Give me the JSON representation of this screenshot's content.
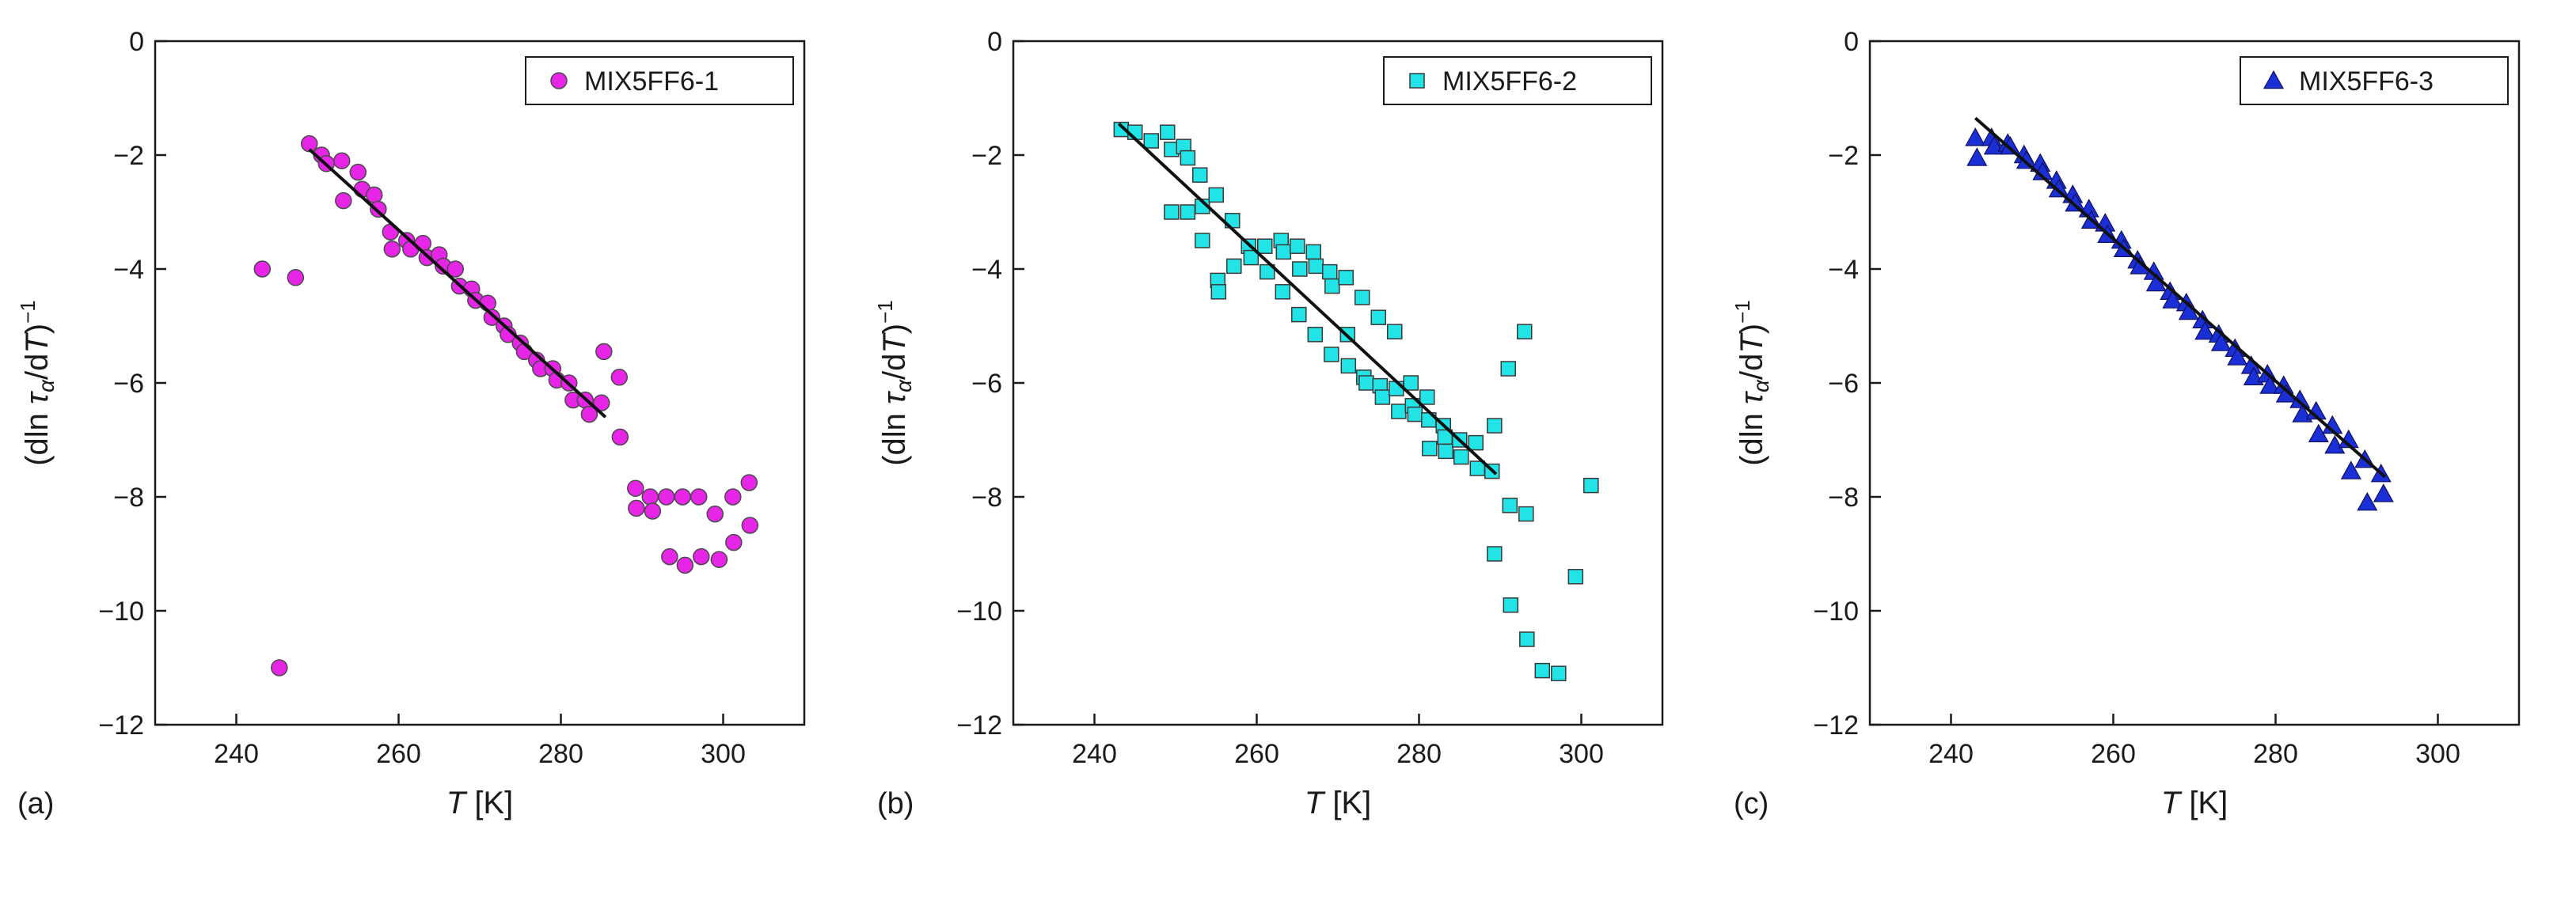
{
  "chart_data": [
    {
      "type": "scatter",
      "panel_label": "(a)",
      "xlabel_italic": "T",
      "xlabel_unit": " [K]",
      "ylabel": "(dln τα/dT)⁻¹",
      "xlim": [
        230,
        310
      ],
      "ylim": [
        -12,
        0
      ],
      "xticks": [
        240,
        260,
        280,
        300
      ],
      "yticks": [
        0,
        -2,
        -4,
        -6,
        -8,
        -10,
        -12
      ],
      "legend": "MIX5FF6-1",
      "legend_position": "top-right",
      "marker": "circle",
      "marker_color": "#e625e6",
      "fit_line": [
        [
          249,
          -1.9
        ],
        [
          285.5,
          -6.6
        ]
      ],
      "points": [
        [
          243.2,
          -4.0
        ],
        [
          245.3,
          -11.0
        ],
        [
          247.3,
          -4.15
        ],
        [
          249.0,
          -1.8
        ],
        [
          250.5,
          -2.0
        ],
        [
          251.1,
          -2.15
        ],
        [
          253.0,
          -2.1
        ],
        [
          253.2,
          -2.8
        ],
        [
          255.0,
          -2.3
        ],
        [
          255.5,
          -2.6
        ],
        [
          257.0,
          -2.7
        ],
        [
          257.5,
          -2.95
        ],
        [
          259.0,
          -3.35
        ],
        [
          259.2,
          -3.65
        ],
        [
          261.0,
          -3.5
        ],
        [
          261.5,
          -3.65
        ],
        [
          263.0,
          -3.55
        ],
        [
          263.5,
          -3.8
        ],
        [
          265.0,
          -3.75
        ],
        [
          265.5,
          -3.95
        ],
        [
          267.0,
          -4.0
        ],
        [
          267.5,
          -4.3
        ],
        [
          269.0,
          -4.35
        ],
        [
          269.5,
          -4.55
        ],
        [
          271.0,
          -4.6
        ],
        [
          271.5,
          -4.85
        ],
        [
          273.0,
          -5.0
        ],
        [
          273.5,
          -5.15
        ],
        [
          275.0,
          -5.3
        ],
        [
          275.5,
          -5.45
        ],
        [
          277.0,
          -5.6
        ],
        [
          277.5,
          -5.75
        ],
        [
          279.0,
          -5.75
        ],
        [
          279.5,
          -5.95
        ],
        [
          281.0,
          -6.0
        ],
        [
          281.5,
          -6.3
        ],
        [
          283.0,
          -6.3
        ],
        [
          283.5,
          -6.55
        ],
        [
          285.0,
          -6.35
        ],
        [
          285.3,
          -5.45
        ],
        [
          287.2,
          -5.9
        ],
        [
          287.3,
          -6.95
        ],
        [
          289.2,
          -7.85
        ],
        [
          289.3,
          -8.2
        ],
        [
          291.0,
          -8.0
        ],
        [
          291.3,
          -8.25
        ],
        [
          293.0,
          -8.0
        ],
        [
          293.4,
          -9.05
        ],
        [
          295.0,
          -8.0
        ],
        [
          295.3,
          -9.2
        ],
        [
          297.0,
          -8.0
        ],
        [
          297.3,
          -9.05
        ],
        [
          299.0,
          -8.3
        ],
        [
          299.5,
          -9.1
        ],
        [
          301.2,
          -8.0
        ],
        [
          301.3,
          -8.8
        ],
        [
          303.2,
          -7.75
        ],
        [
          303.3,
          -8.5
        ]
      ]
    },
    {
      "type": "scatter",
      "panel_label": "(b)",
      "xlabel_italic": "T",
      "xlabel_unit": " [K]",
      "ylabel": "(dln τα/dT)⁻¹",
      "xlim": [
        230,
        310
      ],
      "ylim": [
        -12,
        0
      ],
      "xticks": [
        240,
        260,
        280,
        300
      ],
      "yticks": [
        0,
        -2,
        -4,
        -6,
        -8,
        -10,
        -12
      ],
      "legend": "MIX5FF6-2",
      "legend_position": "top-right",
      "marker": "square",
      "marker_color": "#22e3e6",
      "fit_line": [
        [
          243,
          -1.45
        ],
        [
          289.5,
          -7.6
        ]
      ],
      "points": [
        [
          243.3,
          -1.55
        ],
        [
          245.0,
          -1.6
        ],
        [
          247.0,
          -1.75
        ],
        [
          249.0,
          -1.6
        ],
        [
          249.5,
          -1.9
        ],
        [
          251.0,
          -1.85
        ],
        [
          251.5,
          -2.05
        ],
        [
          253.0,
          -2.35
        ],
        [
          253.3,
          -2.9
        ],
        [
          249.5,
          -3.0
        ],
        [
          251.5,
          -3.0
        ],
        [
          253.3,
          -3.5
        ],
        [
          255.0,
          -2.7
        ],
        [
          255.2,
          -4.2
        ],
        [
          255.3,
          -4.4
        ],
        [
          257.0,
          -3.15
        ],
        [
          257.2,
          -3.95
        ],
        [
          259.0,
          -3.6
        ],
        [
          259.3,
          -3.8
        ],
        [
          261.0,
          -3.6
        ],
        [
          261.3,
          -4.05
        ],
        [
          263.0,
          -3.5
        ],
        [
          263.3,
          -3.7
        ],
        [
          265.0,
          -3.6
        ],
        [
          265.3,
          -4.0
        ],
        [
          267.0,
          -3.7
        ],
        [
          267.3,
          -3.95
        ],
        [
          269.0,
          -4.05
        ],
        [
          269.3,
          -4.3
        ],
        [
          271.0,
          -4.15
        ],
        [
          263.2,
          -4.4
        ],
        [
          265.2,
          -4.8
        ],
        [
          267.2,
          -5.15
        ],
        [
          269.2,
          -5.5
        ],
        [
          271.2,
          -5.15
        ],
        [
          271.3,
          -5.7
        ],
        [
          273.0,
          -4.5
        ],
        [
          273.2,
          -5.9
        ],
        [
          273.5,
          -6.0
        ],
        [
          275.0,
          -4.85
        ],
        [
          275.2,
          -6.05
        ],
        [
          275.5,
          -6.25
        ],
        [
          277.0,
          -5.1
        ],
        [
          277.2,
          -6.1
        ],
        [
          277.5,
          -6.5
        ],
        [
          279.0,
          -6.0
        ],
        [
          279.2,
          -6.4
        ],
        [
          279.5,
          -6.55
        ],
        [
          281.0,
          -6.25
        ],
        [
          281.2,
          -6.65
        ],
        [
          281.3,
          -7.15
        ],
        [
          283.0,
          -6.75
        ],
        [
          283.2,
          -6.95
        ],
        [
          283.3,
          -7.2
        ],
        [
          285.0,
          -7.0
        ],
        [
          285.2,
          -7.3
        ],
        [
          287.0,
          -7.05
        ],
        [
          287.2,
          -7.5
        ],
        [
          289.0,
          -7.55
        ],
        [
          289.3,
          -6.75
        ],
        [
          289.3,
          -9.0
        ],
        [
          291.0,
          -5.75
        ],
        [
          291.2,
          -8.15
        ],
        [
          291.3,
          -9.9
        ],
        [
          293.0,
          -5.1
        ],
        [
          293.2,
          -8.3
        ],
        [
          293.3,
          -10.5
        ],
        [
          295.2,
          -11.05
        ],
        [
          297.2,
          -11.1
        ],
        [
          299.3,
          -9.4
        ],
        [
          301.2,
          -7.8
        ]
      ]
    },
    {
      "type": "scatter",
      "panel_label": "(c)",
      "xlabel_italic": "T",
      "xlabel_unit": " [K]",
      "ylabel": "(dln τα/dT)⁻¹",
      "xlim": [
        230,
        310
      ],
      "ylim": [
        -12,
        0
      ],
      "xticks": [
        240,
        260,
        280,
        300
      ],
      "yticks": [
        0,
        -2,
        -4,
        -6,
        -8,
        -10,
        -12
      ],
      "legend": "MIX5FF6-3",
      "legend_position": "top-right",
      "marker": "triangle",
      "marker_color": "#1a2fd6",
      "fit_line": [
        [
          243,
          -1.35
        ],
        [
          293.5,
          -7.65
        ]
      ],
      "points": [
        [
          243.0,
          -1.7
        ],
        [
          243.2,
          -2.05
        ],
        [
          245.0,
          -1.7
        ],
        [
          245.3,
          -1.85
        ],
        [
          247.0,
          -1.8
        ],
        [
          247.3,
          -1.85
        ],
        [
          249.0,
          -2.0
        ],
        [
          249.3,
          -2.1
        ],
        [
          251.0,
          -2.15
        ],
        [
          251.3,
          -2.3
        ],
        [
          253.0,
          -2.45
        ],
        [
          253.3,
          -2.6
        ],
        [
          255.0,
          -2.7
        ],
        [
          255.3,
          -2.85
        ],
        [
          257.0,
          -2.95
        ],
        [
          257.3,
          -3.15
        ],
        [
          259.0,
          -3.2
        ],
        [
          259.3,
          -3.4
        ],
        [
          261.0,
          -3.5
        ],
        [
          261.3,
          -3.65
        ],
        [
          263.0,
          -3.85
        ],
        [
          263.3,
          -3.95
        ],
        [
          265.0,
          -4.05
        ],
        [
          265.3,
          -4.25
        ],
        [
          267.0,
          -4.4
        ],
        [
          267.3,
          -4.55
        ],
        [
          269.0,
          -4.6
        ],
        [
          269.3,
          -4.75
        ],
        [
          271.0,
          -4.9
        ],
        [
          271.3,
          -5.1
        ],
        [
          273.0,
          -5.15
        ],
        [
          273.3,
          -5.3
        ],
        [
          275.0,
          -5.4
        ],
        [
          275.3,
          -5.55
        ],
        [
          277.0,
          -5.7
        ],
        [
          277.3,
          -5.9
        ],
        [
          279.0,
          -5.85
        ],
        [
          279.3,
          -6.05
        ],
        [
          281.0,
          -6.05
        ],
        [
          281.3,
          -6.2
        ],
        [
          283.0,
          -6.3
        ],
        [
          283.3,
          -6.55
        ],
        [
          285.0,
          -6.5
        ],
        [
          285.3,
          -6.9
        ],
        [
          287.0,
          -6.75
        ],
        [
          287.3,
          -7.1
        ],
        [
          289.0,
          -7.0
        ],
        [
          289.3,
          -7.55
        ],
        [
          291.0,
          -7.35
        ],
        [
          291.3,
          -8.1
        ],
        [
          293.0,
          -7.6
        ],
        [
          293.3,
          -7.95
        ]
      ]
    }
  ]
}
